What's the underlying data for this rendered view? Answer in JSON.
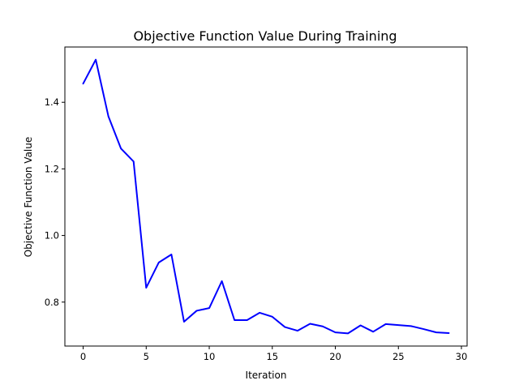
{
  "chart_data": {
    "type": "line",
    "title": "Objective Function Value During Training",
    "xlabel": "Iteration",
    "ylabel": "Objective Function Value",
    "xlim": [
      -1.45,
      30.45
    ],
    "ylim": [
      0.668,
      1.566
    ],
    "xticks": [
      0,
      5,
      10,
      15,
      20,
      25,
      30
    ],
    "xtick_labels": [
      "0",
      "5",
      "10",
      "15",
      "20",
      "25",
      "30"
    ],
    "yticks": [
      0.8,
      1.0,
      1.2,
      1.4
    ],
    "ytick_labels": [
      "0.8",
      "1.0",
      "1.2",
      "1.4"
    ],
    "grid": false,
    "series": [
      {
        "color": "#0000ff",
        "x": [
          0,
          1,
          2,
          3,
          4,
          5,
          6,
          7,
          8,
          9,
          10,
          11,
          12,
          13,
          14,
          15,
          16,
          17,
          18,
          19,
          20,
          21,
          22,
          23,
          24,
          25,
          26,
          27,
          28,
          29
        ],
        "values": [
          1.456,
          1.528,
          1.358,
          1.261,
          1.222,
          0.843,
          0.919,
          0.943,
          0.741,
          0.774,
          0.782,
          0.863,
          0.746,
          0.746,
          0.768,
          0.756,
          0.725,
          0.714,
          0.735,
          0.727,
          0.709,
          0.706,
          0.73,
          0.711,
          0.734,
          0.731,
          0.728,
          0.719,
          0.709,
          0.707
        ]
      }
    ]
  }
}
